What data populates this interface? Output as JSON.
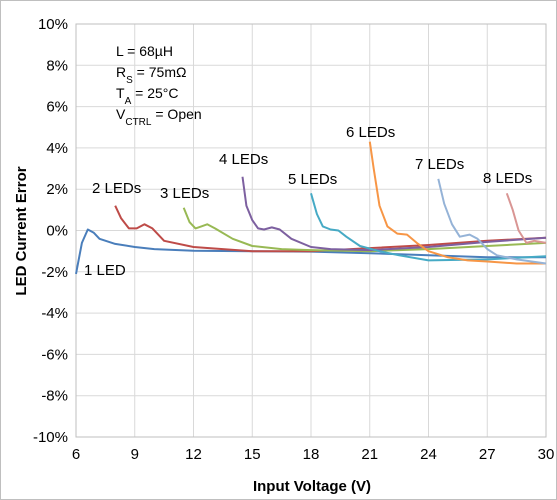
{
  "chart_data": {
    "type": "line",
    "xlabel": "Input Voltage (V)",
    "ylabel": "LED Current Error",
    "xlim": [
      6,
      30
    ],
    "ylim": [
      -10,
      10
    ],
    "x_ticks": [
      6,
      9,
      12,
      15,
      18,
      21,
      24,
      27,
      30
    ],
    "y_ticks": [
      -10,
      -8,
      -6,
      -4,
      -2,
      0,
      2,
      4,
      6,
      8,
      10
    ],
    "y_tick_suffix": "%",
    "grid": true,
    "annotations": [
      {
        "main": "L = 68µH",
        "sub": ""
      },
      {
        "main": "R",
        "sub": "S",
        "rest": " = 75mΩ"
      },
      {
        "main": "T",
        "sub": "A",
        "rest": " = 25°C"
      },
      {
        "main": "V",
        "sub": "CTRL",
        "rest": " = Open"
      }
    ],
    "series": [
      {
        "name": "1 LED",
        "color": "#4a7ebb",
        "points": [
          [
            6,
            -2.1
          ],
          [
            6.3,
            -0.6
          ],
          [
            6.6,
            0.05
          ],
          [
            6.9,
            -0.1
          ],
          [
            7.2,
            -0.4
          ],
          [
            8,
            -0.65
          ],
          [
            9,
            -0.8
          ],
          [
            10,
            -0.9
          ],
          [
            12,
            -0.98
          ],
          [
            15,
            -1.0
          ],
          [
            18,
            -1.02
          ],
          [
            21,
            -1.1
          ],
          [
            24,
            -1.2
          ],
          [
            27,
            -1.3
          ],
          [
            30,
            -1.3
          ]
        ]
      },
      {
        "name": "2 LEDs",
        "color": "#be4b48",
        "points": [
          [
            8,
            1.2
          ],
          [
            8.3,
            0.6
          ],
          [
            8.7,
            0.1
          ],
          [
            9.1,
            0.1
          ],
          [
            9.5,
            0.3
          ],
          [
            9.9,
            0.1
          ],
          [
            10.5,
            -0.5
          ],
          [
            12,
            -0.8
          ],
          [
            15,
            -1.0
          ],
          [
            18,
            -1.0
          ],
          [
            21,
            -0.85
          ],
          [
            24,
            -0.7
          ],
          [
            27,
            -0.5
          ],
          [
            30,
            -0.35
          ]
        ]
      },
      {
        "name": "3 LEDs",
        "color": "#98b954",
        "points": [
          [
            11.5,
            1.1
          ],
          [
            11.8,
            0.4
          ],
          [
            12.1,
            0.1
          ],
          [
            12.4,
            0.2
          ],
          [
            12.7,
            0.3
          ],
          [
            13.1,
            0.1
          ],
          [
            14,
            -0.4
          ],
          [
            15,
            -0.75
          ],
          [
            16.5,
            -0.9
          ],
          [
            18,
            -0.95
          ],
          [
            21,
            -1.0
          ],
          [
            24,
            -0.9
          ],
          [
            27,
            -0.75
          ],
          [
            30,
            -0.6
          ]
        ]
      },
      {
        "name": "4 LEDs",
        "color": "#7d60a0",
        "points": [
          [
            14.5,
            2.6
          ],
          [
            14.7,
            1.2
          ],
          [
            15,
            0.5
          ],
          [
            15.3,
            0.1
          ],
          [
            15.6,
            0.05
          ],
          [
            16,
            0.15
          ],
          [
            16.4,
            0.05
          ],
          [
            17,
            -0.4
          ],
          [
            18,
            -0.8
          ],
          [
            19,
            -0.9
          ],
          [
            21,
            -0.95
          ],
          [
            24,
            -0.8
          ],
          [
            27,
            -0.55
          ],
          [
            30,
            -0.35
          ]
        ]
      },
      {
        "name": "5 LEDs",
        "color": "#46aac5",
        "points": [
          [
            18,
            1.8
          ],
          [
            18.3,
            0.8
          ],
          [
            18.6,
            0.2
          ],
          [
            19.0,
            0.05
          ],
          [
            19.4,
            0.0
          ],
          [
            19.8,
            -0.3
          ],
          [
            20.5,
            -0.75
          ],
          [
            21.5,
            -1.0
          ],
          [
            22.5,
            -1.2
          ],
          [
            24,
            -1.45
          ],
          [
            27,
            -1.4
          ],
          [
            30,
            -1.25
          ]
        ]
      },
      {
        "name": "6 LEDs",
        "color": "#f79646",
        "points": [
          [
            21,
            4.3
          ],
          [
            21.2,
            3.0
          ],
          [
            21.5,
            1.2
          ],
          [
            21.9,
            0.2
          ],
          [
            22.4,
            -0.15
          ],
          [
            22.9,
            -0.2
          ],
          [
            23.4,
            -0.6
          ],
          [
            24,
            -1.0
          ],
          [
            25,
            -1.3
          ],
          [
            26,
            -1.45
          ],
          [
            27,
            -1.5
          ],
          [
            28.5,
            -1.6
          ],
          [
            30,
            -1.6
          ]
        ]
      },
      {
        "name": "7 LEDs",
        "color": "#95b3d7",
        "points": [
          [
            24.5,
            2.5
          ],
          [
            24.8,
            1.3
          ],
          [
            25.2,
            0.3
          ],
          [
            25.6,
            -0.3
          ],
          [
            26.1,
            -0.2
          ],
          [
            26.5,
            -0.4
          ],
          [
            27,
            -0.9
          ],
          [
            27.5,
            -1.2
          ],
          [
            28.5,
            -1.4
          ],
          [
            30,
            -1.6
          ]
        ]
      },
      {
        "name": "8 LEDs",
        "color": "#d99694",
        "points": [
          [
            28,
            1.8
          ],
          [
            28.3,
            1.0
          ],
          [
            28.6,
            0.0
          ],
          [
            29,
            -0.6
          ],
          [
            29.4,
            -0.5
          ],
          [
            29.7,
            -0.55
          ],
          [
            30,
            -0.6
          ]
        ]
      }
    ]
  }
}
